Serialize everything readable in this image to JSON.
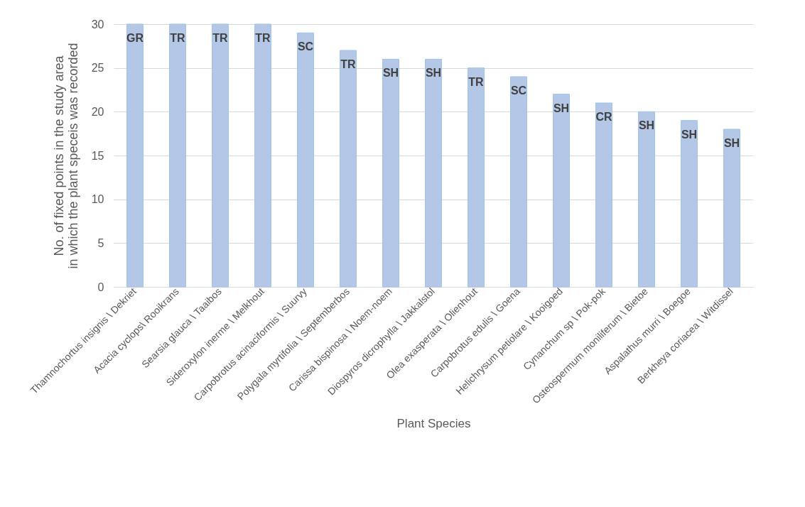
{
  "chart_data": {
    "type": "bar",
    "xlabel": "Plant Species",
    "ylabel": "No. of fixed points in the study area in which the plant speceis was recorded",
    "categories": [
      "Thamnochortus insignis \\ Dekriet",
      "Acacia cyclops\\ Rooikrans",
      "Searsia glauca \\ Taaibos",
      "Sideroxylon inerme \\ Melkhout",
      "Carpobrotus acinaciformis \\ Suurvy",
      "Polygala myrtifolia \\ Septemberbos",
      "Carissa bispinosa \\ Noem-noem",
      "Diospyros dicrophylla \\ Jakkalstol",
      "Olea exasperata \\ Olienhout",
      "Carpobrotus edulis  \\ Goena",
      "Helichrysum petiolare \\ Kooigoed",
      "Cynanchum sp \\ Pok-pok",
      "Osteospermum moniliferum \\ Bietoe",
      "Aspalathus murri \\ Boegoe",
      "Berkheya coriacea \\ Witdissel"
    ],
    "values": [
      30,
      30,
      30,
      30,
      29,
      27,
      26,
      26,
      25,
      24,
      22,
      21,
      20,
      19,
      18
    ],
    "value_labels": [
      "GR",
      "TR",
      "TR",
      "TR",
      "SC",
      "TR",
      "SH",
      "SH",
      "TR",
      "SC",
      "SH",
      "CR",
      "SH",
      "SH",
      "SH"
    ],
    "color": "#b4c7e7",
    "ylim": [
      0,
      30
    ],
    "yticks": [
      0,
      5,
      10,
      15,
      20,
      25,
      30
    ],
    "grid": "y"
  }
}
